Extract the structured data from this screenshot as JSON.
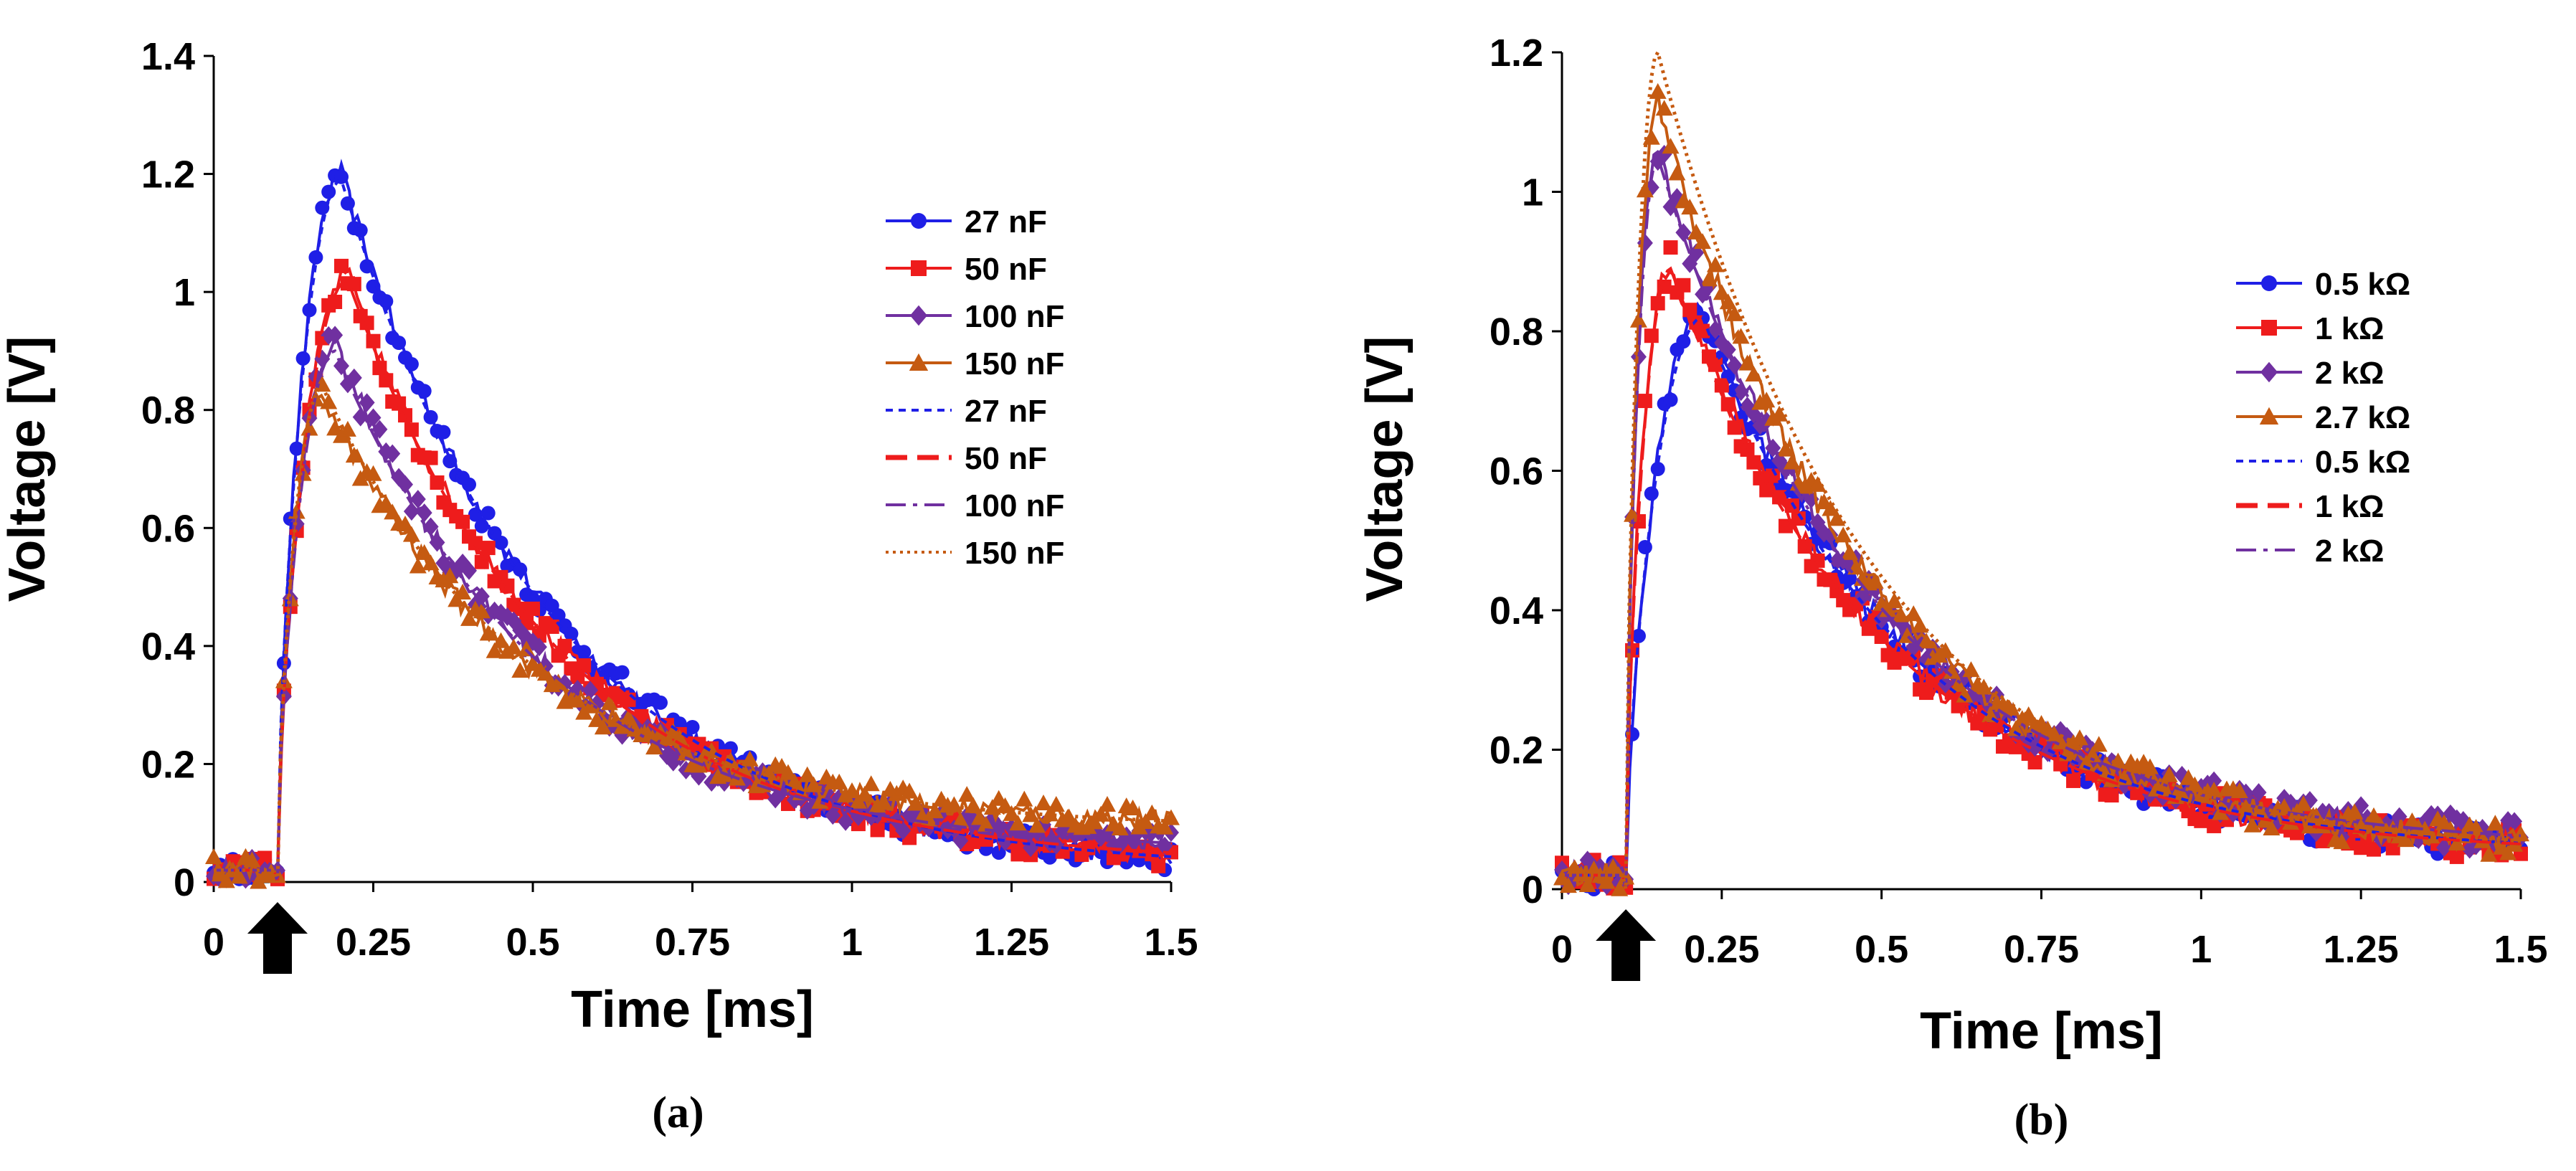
{
  "chart_data": [
    {
      "type": "line",
      "panel_label": "(a)",
      "xlabel": "Time  [ms]",
      "ylabel": "Voltage [V]",
      "xlim": [
        0,
        1.5
      ],
      "ylim": [
        0,
        1.4
      ],
      "xticks": [
        "0",
        "0.25",
        "0.5",
        "0.75",
        "1",
        "1.25",
        "1.5"
      ],
      "yticks": [
        "0",
        "0.2",
        "0.4",
        "0.6",
        "0.8",
        "1",
        "1.2",
        "1.4"
      ],
      "legend_position": "right",
      "annotation": "arrow at 0.1 ms",
      "arrow_x": 0.1,
      "onset": 0.1,
      "series": [
        {
          "name": "27 nF",
          "kind": "measured",
          "marker": "circle",
          "color": "#1f1fe6",
          "peak": 1.2,
          "tpeak": 0.2,
          "tail": 0.02
        },
        {
          "name": "50 nF",
          "kind": "measured",
          "marker": "square",
          "color": "#ee1c1c",
          "peak": 1.03,
          "tpeak": 0.21,
          "tail": 0.03
        },
        {
          "name": "100 nF",
          "kind": "measured",
          "marker": "diamond",
          "color": "#7030a0",
          "peak": 0.91,
          "tpeak": 0.19,
          "tail": 0.05
        },
        {
          "name": "150 nF",
          "kind": "measured",
          "marker": "triangle",
          "color": "#c55a11",
          "peak": 0.83,
          "tpeak": 0.17,
          "tail": 0.09
        },
        {
          "name": "27 nF",
          "kind": "simulated",
          "dash": "short",
          "color": "#1f1fe6",
          "peak": 1.19,
          "tpeak": 0.2,
          "tail": 0.02
        },
        {
          "name": "50 nF",
          "kind": "simulated",
          "dash": "long",
          "color": "#ee1c1c",
          "peak": 1.02,
          "tpeak": 0.21,
          "tail": 0.03
        },
        {
          "name": "100 nF",
          "kind": "simulated",
          "dash": "dashdot",
          "color": "#7030a0",
          "peak": 0.9,
          "tpeak": 0.19,
          "tail": 0.05
        },
        {
          "name": "150 nF",
          "kind": "simulated",
          "dash": "dot",
          "color": "#c55a11",
          "peak": 0.84,
          "tpeak": 0.17,
          "tail": 0.09
        }
      ]
    },
    {
      "type": "line",
      "panel_label": "(b)",
      "xlabel": "Time  [ms]",
      "ylabel": "Voltage [V]",
      "xlim": [
        0,
        1.5
      ],
      "ylim": [
        0,
        1.2
      ],
      "xticks": [
        "0",
        "0.25",
        "0.5",
        "0.75",
        "1",
        "1.25",
        "1.5"
      ],
      "yticks": [
        "0",
        "0.2",
        "0.4",
        "0.6",
        "0.8",
        "1",
        "1.2"
      ],
      "legend_position": "right",
      "annotation": "arrow at 0.1 ms",
      "arrow_x": 0.1,
      "onset": 0.1,
      "series": [
        {
          "name": "0.5 kΩ",
          "kind": "measured",
          "marker": "circle",
          "color": "#1f1fe6",
          "peak": 0.83,
          "tpeak": 0.22,
          "tail": 0.05
        },
        {
          "name": "1 kΩ",
          "kind": "measured",
          "marker": "square",
          "color": "#ee1c1c",
          "peak": 0.9,
          "tpeak": 0.17,
          "tail": 0.05
        },
        {
          "name": "2 kΩ",
          "kind": "measured",
          "marker": "diamond",
          "color": "#7030a0",
          "peak": 1.06,
          "tpeak": 0.15,
          "tail": 0.06
        },
        {
          "name": "2.7 kΩ",
          "kind": "measured",
          "marker": "triangle",
          "color": "#c55a11",
          "peak": 1.13,
          "tpeak": 0.15,
          "tail": 0.05
        },
        {
          "name": "0.5 kΩ",
          "kind": "simulated",
          "dash": "short",
          "color": "#1f1fe6",
          "peak": 0.82,
          "tpeak": 0.22,
          "tail": 0.05
        },
        {
          "name": "1 kΩ",
          "kind": "simulated",
          "dash": "long",
          "color": "#ee1c1c",
          "peak": 0.89,
          "tpeak": 0.17,
          "tail": 0.05
        },
        {
          "name": "2 kΩ",
          "kind": "simulated",
          "dash": "dashdot",
          "color": "#7030a0",
          "peak": 1.05,
          "tpeak": 0.15,
          "tail": 0.06
        },
        {
          "name": "",
          "kind": "simulated",
          "dash": "dot",
          "color": "#c55a11",
          "peak": 1.2,
          "tpeak": 0.15,
          "tail": 0.05
        }
      ]
    }
  ]
}
